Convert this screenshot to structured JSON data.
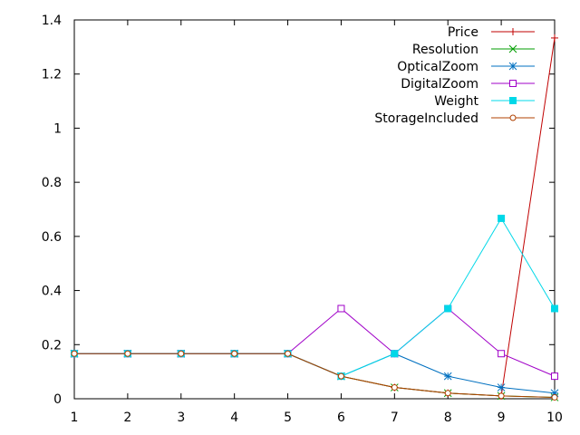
{
  "chart_data": {
    "type": "line",
    "title": "",
    "xlabel": "",
    "ylabel": "",
    "x": [
      1,
      2,
      3,
      4,
      5,
      6,
      7,
      8,
      9,
      10
    ],
    "xlim": [
      1,
      10
    ],
    "ylim": [
      0,
      1.4
    ],
    "x_ticks": [
      "1",
      "2",
      "3",
      "4",
      "5",
      "6",
      "7",
      "8",
      "9",
      "10"
    ],
    "y_ticks": [
      "0",
      "0.2",
      "0.4",
      "0.6",
      "0.8",
      "1",
      "1.2",
      "1.4"
    ],
    "grid": false,
    "legend_position": "top-right",
    "series": [
      {
        "name": "Price",
        "color": "#c00000",
        "marker": "plus",
        "values": [
          0.1667,
          0.1667,
          0.1667,
          0.1667,
          0.1667,
          0.0833,
          0.0417,
          0.0208,
          0.0104,
          1.3333
        ]
      },
      {
        "name": "Resolution",
        "color": "#009e00",
        "marker": "cross",
        "values": [
          0.1667,
          0.1667,
          0.1667,
          0.1667,
          0.1667,
          0.0833,
          0.0417,
          0.0208,
          0.0104,
          0.0052
        ]
      },
      {
        "name": "OpticalZoom",
        "color": "#0070c0",
        "marker": "star",
        "values": [
          0.1667,
          0.1667,
          0.1667,
          0.1667,
          0.1667,
          0.0833,
          0.1667,
          0.0833,
          0.0417,
          0.0208
        ]
      },
      {
        "name": "DigitalZoom",
        "color": "#a000c8",
        "marker": "open-square",
        "values": [
          0.1667,
          0.1667,
          0.1667,
          0.1667,
          0.1667,
          0.3333,
          0.1667,
          0.3333,
          0.1667,
          0.0833
        ]
      },
      {
        "name": "Weight",
        "color": "#00d8e8",
        "marker": "filled-square",
        "values": [
          0.1667,
          0.1667,
          0.1667,
          0.1667,
          0.1667,
          0.0833,
          0.1667,
          0.3333,
          0.6667,
          0.3333
        ]
      },
      {
        "name": "StorageIncluded",
        "color": "#b04000",
        "marker": "open-circle",
        "values": [
          0.1667,
          0.1667,
          0.1667,
          0.1667,
          0.1667,
          0.0833,
          0.0417,
          0.0208,
          0.0104,
          0.0052
        ]
      }
    ]
  }
}
